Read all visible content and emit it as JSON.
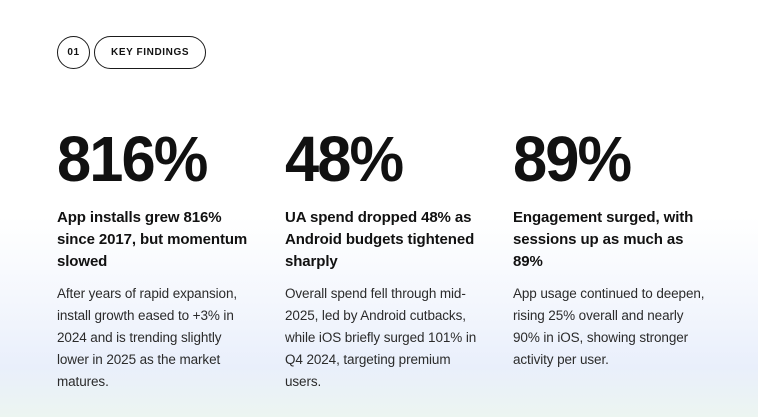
{
  "header": {
    "number": "01",
    "label": "KEY FINDINGS"
  },
  "colors": {
    "background_top": "#ffffff",
    "background_blue": "#e9effb",
    "background_mint": "#ecf5f1",
    "text_primary": "#111111",
    "text_body": "#2b2b2b",
    "badge_border": "#1a1a1a"
  },
  "stats": [
    {
      "value": "816%",
      "heading": "App installs grew 816% since 2017, but momentum slowed",
      "body": "After years of rapid expansion, install growth eased to +3% in 2024 and is trending slightly lower in 2025 as the market matures."
    },
    {
      "value": "48%",
      "heading": "UA spend dropped 48% as Android budgets tightened sharply",
      "body": "Overall spend fell through mid-2025, led by Android cutbacks, while iOS briefly surged 101% in Q4 2024, targeting premium users."
    },
    {
      "value": "89%",
      "heading": "Engagement surged, with sessions up as much as 89%",
      "body": "App usage continued to deepen, rising 25% overall and nearly 90% in iOS, showing stronger activity per user."
    }
  ]
}
